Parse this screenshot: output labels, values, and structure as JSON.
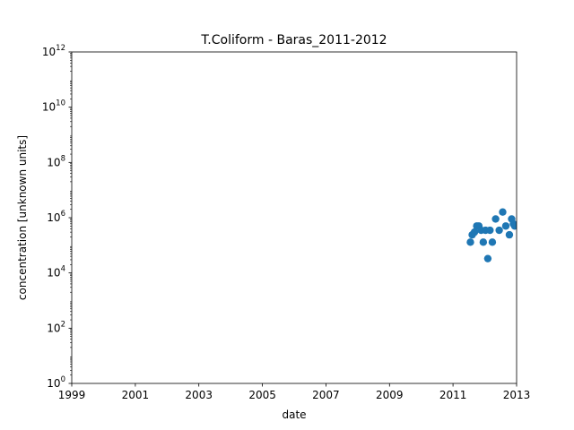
{
  "chart_data": {
    "type": "scatter",
    "title": "T.Coliform - Baras_2011-2012",
    "xlabel": "date",
    "ylabel": "concentration [unknown units]",
    "x_scale": "time",
    "y_scale": "log",
    "xlim": [
      "1999-01-01",
      "2013-01-01"
    ],
    "ylim": [
      1,
      1000000000000
    ],
    "x_ticks": [
      "1999",
      "2001",
      "2003",
      "2005",
      "2007",
      "2009",
      "2011",
      "2013"
    ],
    "y_ticks": [
      {
        "base": "10",
        "exp": "0",
        "value": 1
      },
      {
        "base": "10",
        "exp": "2",
        "value": 100
      },
      {
        "base": "10",
        "exp": "4",
        "value": 10000
      },
      {
        "base": "10",
        "exp": "6",
        "value": 1000000
      },
      {
        "base": "10",
        "exp": "8",
        "value": 100000000
      },
      {
        "base": "10",
        "exp": "10",
        "value": 10000000000
      },
      {
        "base": "10",
        "exp": "12",
        "value": 1000000000000
      }
    ],
    "grid": false,
    "legend": "none",
    "marker_color": "#1f77b4",
    "series": [
      {
        "points": [
          {
            "x": "2011-07-20",
            "y": 130000
          },
          {
            "x": "2011-08-10",
            "y": 240000
          },
          {
            "x": "2011-09-05",
            "y": 300000
          },
          {
            "x": "2011-10-01",
            "y": 500000
          },
          {
            "x": "2011-10-25",
            "y": 500000
          },
          {
            "x": "2011-11-20",
            "y": 350000
          },
          {
            "x": "2011-12-15",
            "y": 130000
          },
          {
            "x": "2012-01-10",
            "y": 350000
          },
          {
            "x": "2012-02-05",
            "y": 33000
          },
          {
            "x": "2012-03-01",
            "y": 350000
          },
          {
            "x": "2012-03-28",
            "y": 130000
          },
          {
            "x": "2012-05-05",
            "y": 900000
          },
          {
            "x": "2012-06-15",
            "y": 350000
          },
          {
            "x": "2012-07-25",
            "y": 1600000
          },
          {
            "x": "2012-08-30",
            "y": 500000
          },
          {
            "x": "2012-10-10",
            "y": 240000
          },
          {
            "x": "2012-11-05",
            "y": 900000
          },
          {
            "x": "2012-11-25",
            "y": 600000
          },
          {
            "x": "2012-12-10",
            "y": 500000
          }
        ]
      }
    ]
  }
}
